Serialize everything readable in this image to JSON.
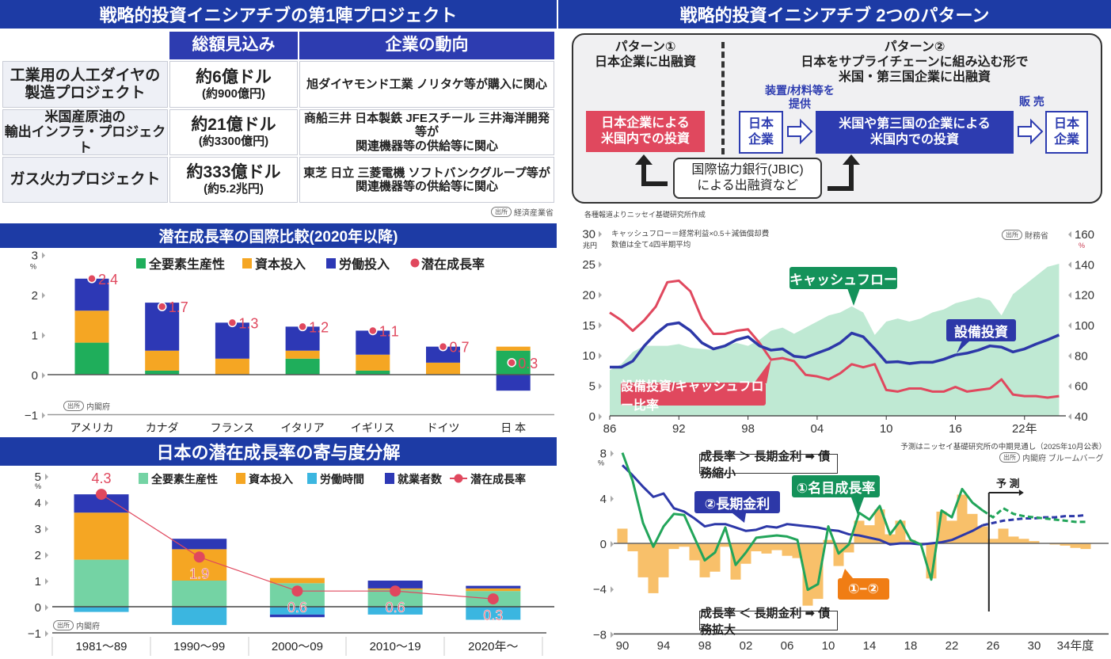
{
  "panel_projects": {
    "title": "戦略的投資イニシアチブの第1陣プロジェクト",
    "headers": [
      "総額見込み",
      "企業の動向"
    ],
    "rows": [
      {
        "name_1": "工業用の人工ダイヤの",
        "name_2": "製造プロジェクト",
        "amount": "約6億ドル",
        "amount_yen": "(約900億円)",
        "companies_1": "旭ダイヤモンド工業 ノリタケ等が購入に関心",
        "companies_2": ""
      },
      {
        "name_1": "米国産原油の",
        "name_2": "輸出インフラ・プロジェクト",
        "amount": "約21億ドル",
        "amount_yen": "(約3300億円)",
        "companies_1": "商船三井 日本製鉄 JFEスチール 三井海洋開発等が",
        "companies_2": "関連機器等の供給等に関心"
      },
      {
        "name_1": "ガス火力プロジェクト",
        "name_2": "",
        "amount": "約333億ドル",
        "amount_yen": "(約5.2兆円)",
        "companies_1": "東芝 日立 三菱電機 ソフトバンクグループ等が",
        "companies_2": "関連機器等の供給等に関心"
      }
    ],
    "source_badge": "出所",
    "source": "経済産業省"
  },
  "panel_patterns": {
    "title": "戦略的投資イニシアチブ 2つのパターン",
    "p1_title": "パターン①",
    "p1_sub": "日本企業に出融資",
    "p2_title": "パターン②",
    "p2_sub1": "日本をサプライチェーンに組み込む形で",
    "p2_sub2": "米国・第三国企業に出融資",
    "p1_box_1": "日本企業による",
    "p1_box_2": "米国内での投資",
    "jp_co_1": "日本",
    "jp_co_2": "企業",
    "supply_1": "装置/材料等を",
    "supply_2": "提供",
    "p2_box_1": "米国や第三国の企業による",
    "p2_box_2": "米国内での投資",
    "sales": "販 売",
    "jbic_1": "国際協力銀行(JBIC)",
    "jbic_2": "による出融資など",
    "note": "各種報道よりニッセイ基礎研究所作成"
  },
  "panel_intl": {
    "title": "潜在成長率の国際比較(2020年以降)",
    "source_badge": "出所",
    "source": "内閣府"
  },
  "panel_japan": {
    "title": "日本の潜在成長率の寄与度分解",
    "source_badge": "出所",
    "source": "内閣府"
  },
  "panel_capex": {
    "note_1": "キャッシュフロー＝経常利益×0.5＋減価償却費",
    "note_2": "数値は全て4四半期平均",
    "source_badge": "出所",
    "source": "財務省",
    "callout_cf": "キャッシュフロー",
    "callout_capex": "設備投資",
    "callout_ratio": "設備投資/キャッシュフロー比率"
  },
  "panel_rates": {
    "note": "予測はニッセイ基礎研究所の中期見通し（2025年10月公表）",
    "source_badge": "出所",
    "source": "内閣府 ブルームバーグ",
    "rule_top": "成長率 ＞ 長期金利 ➡ 債務縮小",
    "rule_bottom": "成長率 ＜ 長期金利 ➡ 債務拡大",
    "callout_rate": "②長期金利",
    "callout_growth": "①名目成長率",
    "callout_diff": "①−②",
    "forecast_label": "予 測"
  },
  "chart_data": [
    {
      "type": "bar",
      "title": "潜在成長率の国際比較(2020年以降)",
      "ylabel": "%",
      "ylim": [
        -1,
        3
      ],
      "yticks": [
        {
          "value": 3,
          "label": "3"
        },
        {
          "value": 2,
          "label": "2"
        },
        {
          "value": 1,
          "label": "1"
        },
        {
          "value": 0,
          "label": "0"
        },
        {
          "value": -1,
          "label": "−1"
        }
      ],
      "categories": [
        "アメリカ",
        "カナダ",
        "フランス",
        "イタリア",
        "イギリス",
        "ドイツ",
        "日 本"
      ],
      "series": [
        {
          "name": "全要素生産性",
          "color": "#1fae5b",
          "values": [
            0.8,
            0.1,
            0.0,
            0.4,
            0.1,
            0.0,
            0.6
          ]
        },
        {
          "name": "資本投入",
          "color": "#f5a623",
          "values": [
            0.8,
            0.5,
            0.4,
            0.2,
            0.4,
            0.3,
            0.1
          ]
        },
        {
          "name": "労働投入",
          "color": "#2d38b5",
          "values": [
            0.8,
            1.2,
            0.9,
            0.6,
            0.6,
            0.4,
            -0.4
          ]
        }
      ],
      "line": {
        "name": "潜在成長率",
        "color": "#e0485e",
        "values": [
          2.4,
          1.7,
          1.3,
          1.2,
          1.1,
          0.7,
          0.3
        ],
        "labels": [
          "2.4",
          "1.7",
          "1.3",
          "1.2",
          "1.1",
          "0.7",
          "0.3"
        ]
      },
      "legend": "top"
    },
    {
      "type": "bar",
      "title": "日本の潜在成長率の寄与度分解",
      "ylabel": "%",
      "ylim": [
        -1,
        5
      ],
      "yticks": [
        {
          "value": 5,
          "label": "5"
        },
        {
          "value": 4,
          "label": "4"
        },
        {
          "value": 3,
          "label": "3"
        },
        {
          "value": 2,
          "label": "2"
        },
        {
          "value": 1,
          "label": "1"
        },
        {
          "value": 0,
          "label": "0"
        },
        {
          "value": -1,
          "label": "−1"
        }
      ],
      "categories": [
        "1981〜89",
        "1990〜99",
        "2000〜09",
        "2010〜19",
        "2020年〜"
      ],
      "series": [
        {
          "name": "全要素生産性",
          "color": "#74d3a4",
          "values": [
            1.8,
            1.0,
            0.9,
            0.65,
            0.6
          ]
        },
        {
          "name": "資本投入",
          "color": "#f5a623",
          "values": [
            1.8,
            1.2,
            0.2,
            0.05,
            0.1
          ]
        },
        {
          "name": "労働時間",
          "color": "#3bb6e0",
          "values": [
            -0.2,
            -0.7,
            -0.3,
            -0.3,
            -0.5
          ]
        },
        {
          "name": "就業者数",
          "color": "#2d38b5",
          "values": [
            0.7,
            0.4,
            -0.1,
            0.3,
            0.1
          ]
        }
      ],
      "line": {
        "name": "潜在成長率",
        "color": "#e0485e",
        "values": [
          4.3,
          1.9,
          0.6,
          0.6,
          0.3
        ],
        "labels": [
          "4.3",
          "1.9",
          "0.6",
          "0.6",
          "0.3"
        ]
      },
      "legend": "top"
    },
    {
      "type": "line",
      "x": [
        1986,
        1987,
        1988,
        1989,
        1990,
        1991,
        1992,
        1993,
        1994,
        1995,
        1996,
        1997,
        1998,
        1999,
        2000,
        2001,
        2002,
        2003,
        2004,
        2005,
        2006,
        2007,
        2008,
        2009,
        2010,
        2011,
        2012,
        2013,
        2014,
        2015,
        2016,
        2017,
        2018,
        2019,
        2020,
        2021,
        2022,
        2023,
        2024,
        2025
      ],
      "xticks": [
        {
          "value": 1986,
          "label": "86"
        },
        {
          "value": 1992,
          "label": "92"
        },
        {
          "value": 1998,
          "label": "98"
        },
        {
          "value": 2004,
          "label": "04"
        },
        {
          "value": 2010,
          "label": "10"
        },
        {
          "value": 2016,
          "label": "16"
        },
        {
          "value": 2022,
          "label": "22年"
        }
      ],
      "ylabel_left": "兆円",
      "ylim_left": [
        0,
        30
      ],
      "yticks_left": [
        {
          "value": 30,
          "label": "30"
        },
        {
          "value": 25,
          "label": "25"
        },
        {
          "value": 20,
          "label": "20"
        },
        {
          "value": 15,
          "label": "15"
        },
        {
          "value": 10,
          "label": "10"
        },
        {
          "value": 5,
          "label": "5"
        },
        {
          "value": 0,
          "label": "0"
        }
      ],
      "ylabel_right": "%",
      "ylim_right": [
        40,
        160
      ],
      "yticks_right": [
        {
          "value": 160,
          "label": "160"
        },
        {
          "value": 140,
          "label": "140"
        },
        {
          "value": 120,
          "label": "120"
        },
        {
          "value": 100,
          "label": "100"
        },
        {
          "value": 80,
          "label": "80"
        },
        {
          "value": 60,
          "label": "60"
        },
        {
          "value": 40,
          "label": "40"
        }
      ],
      "series": [
        {
          "name": "キャッシュフロー",
          "type": "area",
          "axis": "left",
          "color": "#bfe9d3",
          "values": [
            7.5,
            8.5,
            10.5,
            11.5,
            11.5,
            11.5,
            11.8,
            11.2,
            11,
            10.8,
            11.5,
            12,
            11.5,
            12.5,
            14,
            14.5,
            13.5,
            14.5,
            15.5,
            16.5,
            17,
            18,
            17,
            13.3,
            15.5,
            16,
            15.5,
            16,
            17,
            17.5,
            18.5,
            19,
            19.5,
            19,
            16.5,
            20,
            21.5,
            23,
            24.5,
            25
          ]
        },
        {
          "name": "設備投資",
          "type": "line",
          "axis": "left",
          "color": "#2d38a8",
          "values": [
            8,
            8,
            9,
            11.5,
            13.5,
            15,
            15.3,
            14,
            12,
            11,
            11.5,
            12.5,
            13,
            11.5,
            10.8,
            11,
            9.8,
            9.6,
            10.3,
            11,
            12,
            13.6,
            13,
            11,
            8.8,
            8.9,
            8.6,
            8.8,
            8.8,
            9.3,
            10,
            10.3,
            10.8,
            11.5,
            11.3,
            10.5,
            11,
            11.8,
            12.5,
            13.3
          ]
        },
        {
          "name": "設備投資/キャッシュフロー比率",
          "type": "line",
          "axis": "right",
          "color": "#e0485e",
          "values": [
            108,
            103,
            96,
            103,
            112,
            128,
            129,
            122,
            104,
            94,
            94,
            96,
            97,
            88,
            77,
            78,
            76,
            67,
            66,
            64,
            68,
            74,
            72,
            74,
            57,
            56,
            58,
            58,
            56,
            56,
            59,
            56,
            57,
            58,
            64,
            54,
            53,
            53,
            52,
            53
          ]
        }
      ]
    },
    {
      "type": "line",
      "x": [
        1990,
        1991,
        1992,
        1993,
        1994,
        1995,
        1996,
        1997,
        1998,
        1999,
        2000,
        2001,
        2002,
        2003,
        2004,
        2005,
        2006,
        2007,
        2008,
        2009,
        2010,
        2011,
        2012,
        2013,
        2014,
        2015,
        2016,
        2017,
        2018,
        2019,
        2020,
        2021,
        2022,
        2023,
        2024,
        2025,
        2026,
        2027,
        2028,
        2029,
        2030,
        2031,
        2032,
        2033,
        2034,
        2035
      ],
      "forecast_from": 2025,
      "xticks": [
        {
          "value": 1990,
          "label": "90"
        },
        {
          "value": 1994,
          "label": "94"
        },
        {
          "value": 1998,
          "label": "98"
        },
        {
          "value": 2002,
          "label": "02"
        },
        {
          "value": 2006,
          "label": "06"
        },
        {
          "value": 2010,
          "label": "10"
        },
        {
          "value": 2014,
          "label": "14"
        },
        {
          "value": 2018,
          "label": "18"
        },
        {
          "value": 2022,
          "label": "22"
        },
        {
          "value": 2026,
          "label": "26"
        },
        {
          "value": 2030,
          "label": "30"
        },
        {
          "value": 2034,
          "label": "34年度"
        }
      ],
      "ylabel": "%",
      "ylim": [
        -8,
        8
      ],
      "yticks": [
        {
          "value": 8,
          "label": "8"
        },
        {
          "value": 4,
          "label": "4"
        },
        {
          "value": 0,
          "label": "0"
        },
        {
          "value": -4,
          "label": "−4"
        },
        {
          "value": -8,
          "label": "−8"
        }
      ],
      "series": [
        {
          "name": "①−②",
          "type": "bar",
          "color": "#f8c06a",
          "values": [
            1.3,
            -0.7,
            -3.0,
            -4.4,
            -3.0,
            -0.5,
            -0.3,
            -1.5,
            -3.0,
            -2.5,
            -0.3,
            -3.2,
            -1.8,
            -0.7,
            -0.9,
            -0.6,
            -1.1,
            -1.3,
            -5.5,
            -4.9,
            0.3,
            -2.0,
            -0.8,
            2.0,
            1.6,
            3.0,
            0.8,
            2.0,
            0.3,
            0.0,
            -3.1,
            2.8,
            2.0,
            4.3,
            2.6,
            1.5,
            0.4,
            1.3,
            0.6,
            0.4,
            0.2,
            0.0,
            -0.1,
            -0.2,
            -0.4,
            -0.5
          ]
        },
        {
          "name": "②長期金利",
          "type": "line",
          "color": "#2d38a8",
          "values": [
            6.9,
            6.0,
            5.0,
            4.1,
            4.4,
            3.1,
            2.8,
            2.2,
            1.5,
            1.7,
            1.7,
            1.4,
            1.1,
            1.2,
            1.5,
            1.4,
            1.7,
            1.6,
            1.5,
            1.4,
            1.2,
            1.1,
            0.8,
            0.7,
            0.5,
            0.3,
            -0.1,
            0.0,
            0.0,
            -0.1,
            0.0,
            0.1,
            0.3,
            0.7,
            1.1,
            1.6,
            1.8,
            2.0,
            2.1,
            2.2,
            2.2,
            2.3,
            2.3,
            2.4,
            2.4,
            2.5
          ]
        },
        {
          "name": "①名目成長率",
          "type": "line",
          "color": "#22a55a",
          "values": [
            8.0,
            5.5,
            1.8,
            -0.3,
            1.5,
            2.6,
            2.5,
            0.5,
            -1.5,
            -0.8,
            1.4,
            -1.9,
            -0.8,
            0.5,
            0.6,
            0.7,
            0.6,
            0.3,
            -4.1,
            -3.6,
            1.5,
            -0.9,
            -0.1,
            2.7,
            2.1,
            3.3,
            0.8,
            2.0,
            0.3,
            -0.1,
            -3.2,
            2.9,
            2.3,
            4.8,
            3.6,
            2.9,
            2.3,
            3.1,
            2.6,
            2.4,
            2.3,
            2.2,
            2.1,
            2.0,
            1.9,
            1.9
          ]
        }
      ]
    }
  ]
}
